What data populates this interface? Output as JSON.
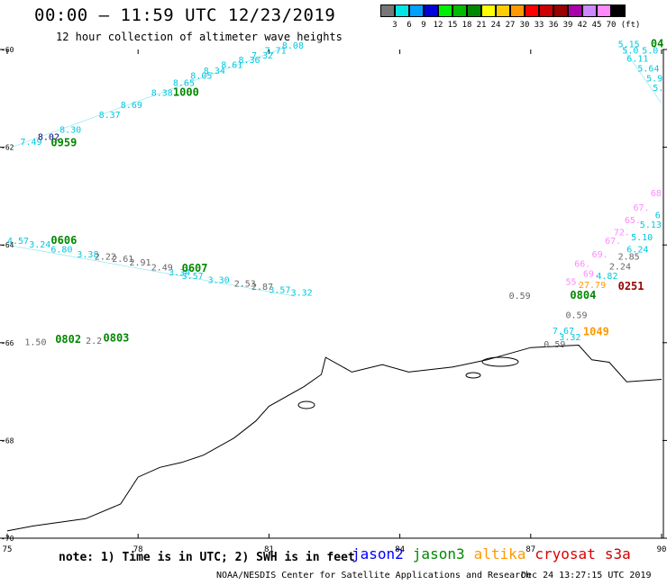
{
  "title": "00:00 – 11:59 UTC 12/23/2019",
  "subtitle": "12 hour collection of altimeter wave heights",
  "colorbar": {
    "labels": [
      "3",
      "6",
      "9",
      "12",
      "15",
      "18",
      "21",
      "24",
      "27",
      "30",
      "33",
      "36",
      "39",
      "42",
      "45",
      "70"
    ],
    "unit": "(ft)",
    "colors": [
      "#777777",
      "#00e5e5",
      "#00a0ff",
      "#0000dd",
      "#00ee00",
      "#00bb00",
      "#008800",
      "#ffff00",
      "#ffcc00",
      "#ff9900",
      "#ff0000",
      "#cc0000",
      "#990000",
      "#aa00aa",
      "#cc88ff",
      "#ff88ff",
      "#000000"
    ]
  },
  "axes": {
    "lon_ticks": [
      "75",
      "78",
      "81",
      "84",
      "87",
      "90"
    ],
    "lat_ticks": [
      "-60",
      "-62",
      "-64",
      "-66",
      "-68",
      "-70"
    ]
  },
  "note": "note: 1) Time is in UTC; 2) SWH is in feet",
  "legend": [
    {
      "name": "jason2",
      "color": "#0000ff"
    },
    {
      "name": "jason3",
      "color": "#008800"
    },
    {
      "name": "altika",
      "color": "#ff9900"
    },
    {
      "name": "cryosat",
      "color": "#dd0000"
    },
    {
      "name": "s3a",
      "color": "#cc0000"
    }
  ],
  "credit": "NOAA/NESDIS Center for Satellite Applications and Research",
  "timestamp": "Dec 24 13:27:15 UTC 2019",
  "map": {
    "lon_min": 75,
    "lon_max": 90,
    "lat_min": -70,
    "lat_max": -60,
    "time_labels": [
      {
        "text": "0959",
        "lon": 76.0,
        "lat": -61.98,
        "color": "#008800"
      },
      {
        "text": "1000",
        "lon": 78.8,
        "lat": -60.95,
        "color": "#008800"
      },
      {
        "text": "0606",
        "lon": 76.0,
        "lat": -63.98,
        "color": "#008800"
      },
      {
        "text": "0607",
        "lon": 79.0,
        "lat": -64.55,
        "color": "#008800"
      },
      {
        "text": "0802",
        "lon": 76.1,
        "lat": -66.0,
        "color": "#008800"
      },
      {
        "text": "0803",
        "lon": 77.2,
        "lat": -65.98,
        "color": "#008800"
      },
      {
        "text": "0804",
        "lon": 87.9,
        "lat": -65.1,
        "color": "#008800"
      },
      {
        "text": "04",
        "lon": 89.75,
        "lat": -59.95,
        "color": "#008800"
      },
      {
        "text": "1049",
        "lon": 88.2,
        "lat": -65.85,
        "color": "#ff9900"
      },
      {
        "text": "0251",
        "lon": 89.0,
        "lat": -64.92,
        "color": "#990000"
      }
    ],
    "swh_labels": [
      {
        "text": "7.49",
        "lon": 75.3,
        "lat": -61.95,
        "color": "#00c8e0"
      },
      {
        "text": "8.02",
        "lon": 75.7,
        "lat": -61.85,
        "color": "#000080"
      },
      {
        "text": "8.30",
        "lon": 76.2,
        "lat": -61.7,
        "color": "#00c8e0"
      },
      {
        "text": "8.37",
        "lon": 77.1,
        "lat": -61.4,
        "color": "#00c8e0"
      },
      {
        "text": "8.69",
        "lon": 77.6,
        "lat": -61.2,
        "color": "#00c8e0"
      },
      {
        "text": "8.38",
        "lon": 78.3,
        "lat": -60.95,
        "color": "#00c8e0"
      },
      {
        "text": "8.65",
        "lon": 78.8,
        "lat": -60.75,
        "color": "#00c8e0"
      },
      {
        "text": "8.05",
        "lon": 79.2,
        "lat": -60.6,
        "color": "#00c8e0"
      },
      {
        "text": "8.34",
        "lon": 79.5,
        "lat": -60.5,
        "color": "#00c8e0"
      },
      {
        "text": "8.61",
        "lon": 79.9,
        "lat": -60.38,
        "color": "#00c8e0"
      },
      {
        "text": "8.36",
        "lon": 80.3,
        "lat": -60.28,
        "color": "#00c8e0"
      },
      {
        "text": "7.32",
        "lon": 80.6,
        "lat": -60.18,
        "color": "#00c8e0"
      },
      {
        "text": "7.71",
        "lon": 80.9,
        "lat": -60.08,
        "color": "#00c8e0"
      },
      {
        "text": "8.08",
        "lon": 81.3,
        "lat": -59.98,
        "color": "#00c8e0"
      },
      {
        "text": "4.57",
        "lon": 75.0,
        "lat": -63.98,
        "color": "#00c8e0"
      },
      {
        "text": "3.24",
        "lon": 75.5,
        "lat": -64.05,
        "color": "#00c8e0"
      },
      {
        "text": "6.80",
        "lon": 76.0,
        "lat": -64.15,
        "color": "#00c8e0"
      },
      {
        "text": "3.38",
        "lon": 76.6,
        "lat": -64.25,
        "color": "#00c8e0"
      },
      {
        "text": "2.22",
        "lon": 77.0,
        "lat": -64.3,
        "color": "#666666"
      },
      {
        "text": "2.61",
        "lon": 77.4,
        "lat": -64.35,
        "color": "#666666"
      },
      {
        "text": "2.91",
        "lon": 77.8,
        "lat": -64.42,
        "color": "#666666"
      },
      {
        "text": "2.49",
        "lon": 78.3,
        "lat": -64.52,
        "color": "#666666"
      },
      {
        "text": "3.34",
        "lon": 78.7,
        "lat": -64.62,
        "color": "#00c8e0"
      },
      {
        "text": "3.57",
        "lon": 79.0,
        "lat": -64.7,
        "color": "#00c8e0"
      },
      {
        "text": "3.30",
        "lon": 79.6,
        "lat": -64.78,
        "color": "#00c8e0"
      },
      {
        "text": "2.53",
        "lon": 80.2,
        "lat": -64.85,
        "color": "#666666"
      },
      {
        "text": "2.87",
        "lon": 80.6,
        "lat": -64.92,
        "color": "#666666"
      },
      {
        "text": "3.57",
        "lon": 81.0,
        "lat": -64.98,
        "color": "#00c8e0"
      },
      {
        "text": "3.32",
        "lon": 81.5,
        "lat": -65.04,
        "color": "#00c8e0"
      },
      {
        "text": "1.50",
        "lon": 75.4,
        "lat": -66.05,
        "color": "#666666"
      },
      {
        "text": "2.2",
        "lon": 76.8,
        "lat": -66.02,
        "color": "#666666"
      },
      {
        "text": "0.59",
        "lon": 86.5,
        "lat": -65.1,
        "color": "#666666"
      },
      {
        "text": "0.59",
        "lon": 87.8,
        "lat": -65.5,
        "color": "#666666"
      },
      {
        "text": "7.67",
        "lon": 87.5,
        "lat": -65.82,
        "color": "#00c8e0"
      },
      {
        "text": "3.32",
        "lon": 87.65,
        "lat": -65.95,
        "color": "#00c8e0"
      },
      {
        "text": "0.59",
        "lon": 87.3,
        "lat": -66.1,
        "color": "#666666"
      },
      {
        "text": "27.79",
        "lon": 88.1,
        "lat": -64.88,
        "color": "#ff9900"
      },
      {
        "text": "55.",
        "lon": 87.8,
        "lat": -64.82,
        "color": "#ff88ff"
      },
      {
        "text": "4.82",
        "lon": 88.5,
        "lat": -64.7,
        "color": "#00c8e0"
      },
      {
        "text": "69.",
        "lon": 88.2,
        "lat": -64.65,
        "color": "#ff88ff"
      },
      {
        "text": "66.",
        "lon": 88.0,
        "lat": -64.45,
        "color": "#ff88ff"
      },
      {
        "text": "2.24",
        "lon": 88.8,
        "lat": -64.5,
        "color": "#666666"
      },
      {
        "text": "2.85",
        "lon": 89.0,
        "lat": -64.3,
        "color": "#666666"
      },
      {
        "text": "69.",
        "lon": 88.4,
        "lat": -64.25,
        "color": "#ff88ff"
      },
      {
        "text": "6.24",
        "lon": 89.2,
        "lat": -64.15,
        "color": "#00c8e0"
      },
      {
        "text": "67.",
        "lon": 88.7,
        "lat": -63.98,
        "color": "#ff88ff"
      },
      {
        "text": "5.10",
        "lon": 89.3,
        "lat": -63.9,
        "color": "#00c8e0"
      },
      {
        "text": "72.",
        "lon": 88.9,
        "lat": -63.8,
        "color": "#ff88ff"
      },
      {
        "text": "5.13",
        "lon": 89.5,
        "lat": -63.65,
        "color": "#00c8e0"
      },
      {
        "text": "65.",
        "lon": 89.15,
        "lat": -63.55,
        "color": "#ff88ff"
      },
      {
        "text": "67.",
        "lon": 89.35,
        "lat": -63.3,
        "color": "#ff88ff"
      },
      {
        "text": "6",
        "lon": 89.85,
        "lat": -63.45,
        "color": "#00c8e0"
      },
      {
        "text": "68",
        "lon": 89.75,
        "lat": -63.0,
        "color": "#ff88ff"
      },
      {
        "text": "5.15",
        "lon": 89.0,
        "lat": -59.95,
        "color": "#00c8e0"
      },
      {
        "text": "5.0",
        "lon": 89.1,
        "lat": -60.08,
        "color": "#00c8e0"
      },
      {
        "text": "5.0",
        "lon": 89.55,
        "lat": -60.08,
        "color": "#00c8e0"
      },
      {
        "text": "6.11",
        "lon": 89.2,
        "lat": -60.25,
        "color": "#00c8e0"
      },
      {
        "text": "5.64",
        "lon": 89.45,
        "lat": -60.45,
        "color": "#00c8e0"
      },
      {
        "text": "5.9",
        "lon": 89.65,
        "lat": -60.65,
        "color": "#00c8e0"
      },
      {
        "text": "5.",
        "lon": 89.8,
        "lat": -60.85,
        "color": "#00c8e0"
      }
    ],
    "tracks": [
      {
        "color": "#00c8e0",
        "points": [
          [
            75.1,
            -62.0
          ],
          [
            81.4,
            -59.95
          ]
        ]
      },
      {
        "color": "#00c8e0",
        "points": [
          [
            75.0,
            -64.0
          ],
          [
            81.6,
            -65.05
          ]
        ]
      },
      {
        "color": "#00c8e0",
        "points": [
          [
            89.1,
            -59.95
          ],
          [
            90.0,
            -61.1
          ]
        ]
      }
    ],
    "coastline": [
      [
        75.0,
        -69.85
      ],
      [
        75.6,
        -69.75
      ],
      [
        76.8,
        -69.6
      ],
      [
        77.6,
        -69.3
      ],
      [
        78.0,
        -68.75
      ],
      [
        78.5,
        -68.55
      ],
      [
        79.0,
        -68.45
      ],
      [
        79.5,
        -68.3
      ],
      [
        80.2,
        -67.95
      ],
      [
        80.7,
        -67.6
      ],
      [
        81.0,
        -67.3
      ],
      [
        81.8,
        -66.9
      ],
      [
        82.2,
        -66.65
      ],
      [
        82.3,
        -66.3
      ],
      [
        82.9,
        -66.6
      ],
      [
        83.6,
        -66.45
      ],
      [
        84.2,
        -66.6
      ],
      [
        85.2,
        -66.5
      ],
      [
        86.0,
        -66.35
      ],
      [
        87.0,
        -66.1
      ],
      [
        88.1,
        -66.05
      ],
      [
        88.4,
        -66.35
      ],
      [
        88.8,
        -66.4
      ],
      [
        89.2,
        -66.8
      ],
      [
        90.0,
        -66.75
      ]
    ]
  }
}
